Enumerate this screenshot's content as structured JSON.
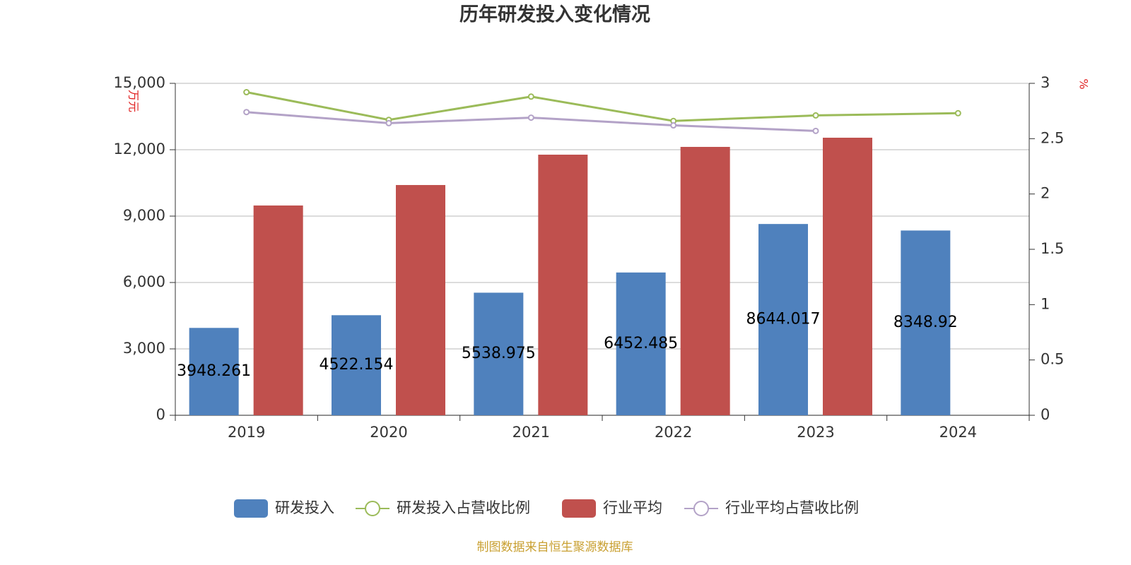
{
  "chart_data": {
    "type": "bar",
    "title": "历年研发投入变化情况",
    "y_label": "万元",
    "y2_label": "%",
    "source": "制图数据来自恒生聚源数据库",
    "categories": [
      "2019",
      "2020",
      "2021",
      "2022",
      "2023",
      "2024"
    ],
    "series": [
      {
        "name": "研发投入",
        "type": "bar",
        "color": "#4f81bd",
        "axis": "y",
        "show_labels": true,
        "values": [
          3948.261,
          4522.154,
          5538.975,
          6452.485,
          8644.017,
          8348.92
        ]
      },
      {
        "name": "研发投入占营收比例",
        "type": "line",
        "color": "#9bbb59",
        "axis": "y2",
        "values": [
          2.92,
          2.67,
          2.88,
          2.66,
          2.71,
          2.73
        ]
      },
      {
        "name": "行业平均",
        "type": "bar",
        "color": "#c0504d",
        "axis": "y",
        "values": [
          9480,
          10405,
          11777,
          12128,
          12543,
          null
        ]
      },
      {
        "name": "行业平均占营收比例",
        "type": "line",
        "color": "#b3a2c7",
        "axis": "y2",
        "values": [
          2.74,
          2.64,
          2.69,
          2.62,
          2.57,
          null
        ]
      }
    ],
    "ylim": [
      0,
      15000
    ],
    "yticks": [
      0,
      {
        "value": 3000,
        "label": "3,000"
      },
      {
        "value": 6000,
        "label": "6,000"
      },
      {
        "value": 9000,
        "label": "9,000"
      },
      {
        "value": 12000,
        "label": "12,000"
      },
      {
        "value": 15000,
        "label": "15,000"
      }
    ],
    "y2lim": [
      0,
      3
    ],
    "y2ticks": [
      0,
      0.5,
      1,
      1.5,
      2,
      2.5,
      3
    ],
    "grid": true,
    "legend": "bottom"
  }
}
